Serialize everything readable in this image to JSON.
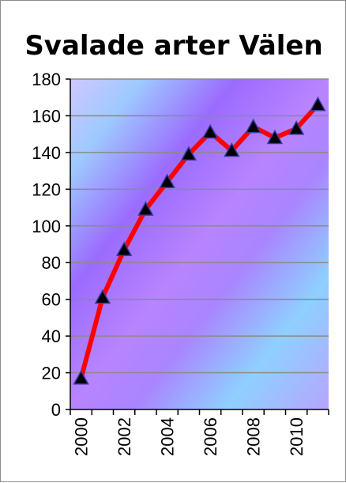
{
  "chart_data": {
    "type": "line",
    "title": "Svalade arter Välen",
    "xlabel": "",
    "ylabel": "",
    "ylim": [
      0,
      180
    ],
    "yticks": [
      "0",
      "20",
      "40",
      "60",
      "80",
      "100",
      "120",
      "140",
      "160",
      "180"
    ],
    "x_tick_labels": [
      "2000",
      "2002",
      "2004",
      "2006",
      "2008",
      "2010"
    ],
    "categories": [
      "2000",
      "2001",
      "2002",
      "2003",
      "2004",
      "2005",
      "2006",
      "2007",
      "2008",
      "2009",
      "2010",
      "2011"
    ],
    "values": [
      17,
      61,
      87,
      109,
      124,
      139,
      151,
      141,
      154,
      148,
      153,
      166
    ],
    "grid": true,
    "legend": "none",
    "colors": {
      "line": "#ff0000",
      "marker_fill": "#000000",
      "marker_stroke": "#3a3aa0",
      "grid": "#8a8a8a"
    }
  }
}
